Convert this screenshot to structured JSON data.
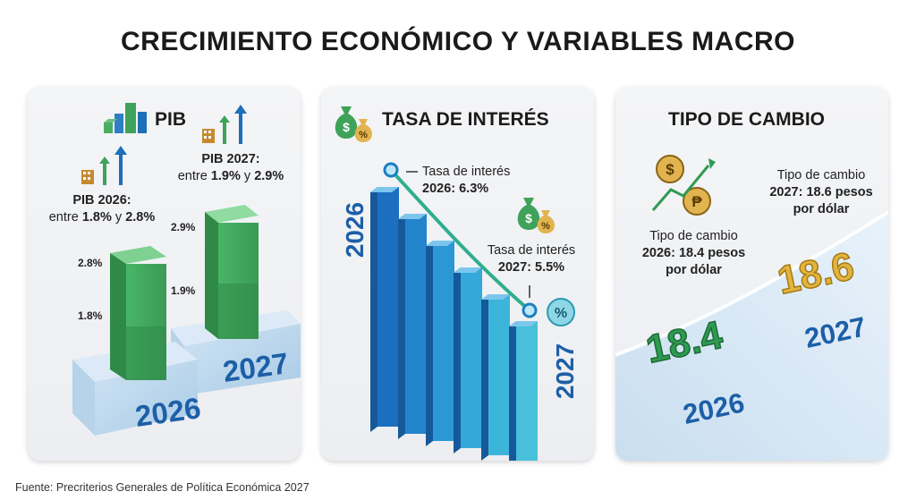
{
  "title": "CRECIMIENTO ECONÓMICO Y VARIABLES MACRO",
  "footer": "Fuente: Precriterios Generales de Política Económica 2027",
  "icons": {
    "pib": "building-chart-icon",
    "growth": "building-up-arrows-icon",
    "money": "money-bag-dollar-percent-icon",
    "exchange": "dollar-peso-exchange-icon",
    "percent": "percent-badge-icon"
  },
  "colors": {
    "green": "#3fa25a",
    "blue": "#1c6fb8",
    "teal": "#31b5c9",
    "gold": "#d9a431"
  },
  "panels": {
    "pib": {
      "title": "PIB",
      "label_2026_a": "PIB 2026:",
      "label_2026_b_pre": "entre ",
      "label_2026_b_v1": "1.8%",
      "label_2026_b_mid": " y ",
      "label_2026_b_v2": "2.8%",
      "label_2027_a": "PIB 2027:",
      "label_2027_b_pre": "entre ",
      "label_2027_b_v1": "1.9%",
      "label_2027_b_mid": " y ",
      "label_2027_b_v2": "2.9%"
    },
    "tasa": {
      "title": "TASA DE INTERÉS",
      "label_2026_a": "Tasa de interés",
      "label_2026_b": "2026: 6.3%",
      "label_2027_a": "Tasa de interés",
      "label_2027_b": "2027: 5.5%"
    },
    "tipo": {
      "title": "TIPO DE CAMBIO",
      "label_2026_a": "Tipo de cambio",
      "label_2026_b": "2026: 18.4 pesos",
      "label_2026_c": "por dólar",
      "label_2027_a": "Tipo de cambio",
      "label_2027_b": "2027: 18.6 pesos",
      "label_2027_c": "por dólar"
    }
  },
  "chart_data": [
    {
      "type": "bar",
      "title": "PIB",
      "categories": [
        "2026",
        "2027"
      ],
      "series": [
        {
          "name": "",
          "low": [
            1.8,
            1.9
          ],
          "high": [
            2.8,
            2.9
          ]
        }
      ],
      "tick_labels": {
        "2026": [
          "1.8%",
          "2.8%"
        ],
        "2027": [
          "1.9%",
          "2.9%"
        ]
      },
      "unit": "%"
    },
    {
      "type": "bar",
      "title": "TASA DE INTERÉS",
      "categories": [
        "2026",
        "2027"
      ],
      "values": [
        6.3,
        5.5
      ],
      "unit": "%"
    },
    {
      "type": "line",
      "title": "TIPO DE CAMBIO",
      "categories": [
        "2026",
        "2027"
      ],
      "values": [
        18.4,
        18.6
      ],
      "value_labels": [
        "18.4",
        "18.6"
      ]
    }
  ]
}
